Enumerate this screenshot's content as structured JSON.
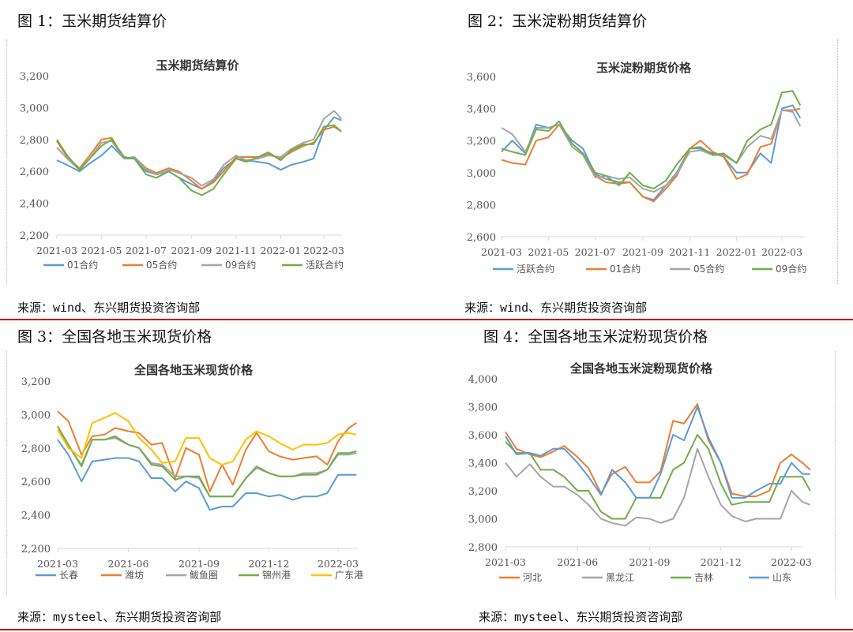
{
  "captions": [
    "图 1：玉米期货结算价",
    "图 2：玉米淀粉期货结算价",
    "图 3：全国各地玉米现货价格",
    "图 4：全国各地玉米淀粉现货价格"
  ],
  "sources": [
    "来源：wind、东兴期货投资咨询部",
    "来源：wind、东兴期货投资咨询部",
    "来源：mysteel、东兴期货投资咨询部",
    "来源：mysteel、东兴期货投资咨询部"
  ],
  "colors": {
    "blue": "#5b9bd5",
    "orange": "#ed7d31",
    "gray": "#a5a5a5",
    "green": "#70ad47",
    "yellow": "#ffc000",
    "divider": "#c00000"
  },
  "chart_data": [
    {
      "type": "line",
      "title": "玉米期货结算价",
      "ylim": [
        2200,
        3200
      ],
      "yticks": [
        "2,200",
        "2,400",
        "2,600",
        "2,800",
        "3,000",
        "3,200"
      ],
      "xticks": [
        "2021-03",
        "2021-05",
        "2021-07",
        "2021-09",
        "2021-11",
        "2022-01",
        "2022-03"
      ],
      "legend": "bottom",
      "grid": false,
      "x": [
        "2021-03-01",
        "2021-03-15",
        "2021-04-01",
        "2021-04-15",
        "2021-05-01",
        "2021-05-15",
        "2021-06-01",
        "2021-06-15",
        "2021-07-01",
        "2021-07-15",
        "2021-08-01",
        "2021-08-15",
        "2021-09-01",
        "2021-09-15",
        "2021-10-01",
        "2021-10-15",
        "2021-11-01",
        "2021-11-15",
        "2021-12-01",
        "2021-12-15",
        "2022-01-01",
        "2022-01-15",
        "2022-02-01",
        "2022-02-15",
        "2022-03-01",
        "2022-03-15",
        "2022-03-25"
      ],
      "series": [
        {
          "name": "01合约",
          "color": "#5b9bd5",
          "values": [
            2670,
            2640,
            2600,
            2650,
            2700,
            2760,
            2680,
            2680,
            2600,
            2580,
            2600,
            2560,
            2520,
            2490,
            2540,
            2620,
            2680,
            2670,
            2660,
            2650,
            2610,
            2640,
            2660,
            2680,
            2860,
            2940,
            2920
          ]
        },
        {
          "name": "05合约",
          "color": "#ed7d31",
          "values": [
            2790,
            2690,
            2620,
            2700,
            2800,
            2810,
            2680,
            2690,
            2620,
            2590,
            2620,
            2600,
            2540,
            2490,
            2530,
            2600,
            2690,
            2690,
            2690,
            2710,
            2680,
            2720,
            2760,
            2780,
            2860,
            2880,
            2850
          ]
        },
        {
          "name": "09合约",
          "color": "#a5a5a5",
          "values": [
            2750,
            2680,
            2610,
            2680,
            2780,
            2790,
            2680,
            2690,
            2610,
            2580,
            2610,
            2590,
            2560,
            2510,
            2550,
            2640,
            2700,
            2670,
            2680,
            2700,
            2690,
            2740,
            2780,
            2800,
            2930,
            2980,
            2930
          ]
        },
        {
          "name": "活跃合约",
          "color": "#70ad47",
          "values": [
            2800,
            2700,
            2610,
            2680,
            2760,
            2800,
            2690,
            2680,
            2580,
            2560,
            2600,
            2560,
            2480,
            2450,
            2490,
            2580,
            2680,
            2660,
            2690,
            2720,
            2670,
            2730,
            2770,
            2770,
            2880,
            2890,
            2850
          ]
        }
      ]
    },
    {
      "type": "line",
      "title": "玉米淀粉期货价格",
      "ylim": [
        2600,
        3600
      ],
      "yticks": [
        "2,600",
        "2,800",
        "3,000",
        "3,200",
        "3,400",
        "3,600"
      ],
      "xticks": [
        "2021-03",
        "2021-05",
        "2021-07",
        "2021-09",
        "2021-11",
        "2022-01",
        "2022-03"
      ],
      "legend": "bottom",
      "grid": false,
      "x": [
        "2021-03-01",
        "2021-03-15",
        "2021-04-01",
        "2021-04-15",
        "2021-05-01",
        "2021-05-15",
        "2021-06-01",
        "2021-06-15",
        "2021-07-01",
        "2021-07-15",
        "2021-08-01",
        "2021-08-15",
        "2021-09-01",
        "2021-09-15",
        "2021-10-01",
        "2021-10-15",
        "2021-11-01",
        "2021-11-15",
        "2021-12-01",
        "2021-12-15",
        "2022-01-01",
        "2022-01-15",
        "2022-02-01",
        "2022-02-15",
        "2022-03-01",
        "2022-03-15",
        "2022-03-25"
      ],
      "series": [
        {
          "name": "活跃合约",
          "color": "#5b9bd5",
          "values": [
            3130,
            3200,
            3120,
            3300,
            3280,
            3300,
            3200,
            3150,
            2990,
            2960,
            2940,
            2940,
            2850,
            2830,
            2920,
            3000,
            3150,
            3150,
            3120,
            3100,
            3000,
            3000,
            3120,
            3060,
            3400,
            3420,
            3340
          ]
        },
        {
          "name": "01合约",
          "color": "#ed7d31",
          "values": [
            3080,
            3060,
            3050,
            3200,
            3220,
            3300,
            3180,
            3120,
            2980,
            2940,
            2930,
            2940,
            2850,
            2820,
            2900,
            2980,
            3150,
            3200,
            3130,
            3100,
            2960,
            2990,
            3160,
            3180,
            3390,
            3390,
            3400
          ]
        },
        {
          "name": "05合约",
          "color": "#a5a5a5",
          "values": [
            3280,
            3240,
            3130,
            3280,
            3280,
            3300,
            3160,
            3110,
            2970,
            2980,
            2960,
            2970,
            2900,
            2880,
            2920,
            2990,
            3130,
            3140,
            3110,
            3110,
            3060,
            3160,
            3230,
            3210,
            3390,
            3380,
            3290
          ]
        },
        {
          "name": "09合约",
          "color": "#70ad47",
          "values": [
            3150,
            3130,
            3110,
            3270,
            3260,
            3320,
            3180,
            3120,
            3000,
            2980,
            2920,
            3000,
            2920,
            2900,
            2950,
            3050,
            3150,
            3160,
            3110,
            3120,
            3060,
            3200,
            3270,
            3300,
            3500,
            3510,
            3420
          ]
        }
      ]
    },
    {
      "type": "line",
      "title": "全国各地玉米现货价格",
      "ylim": [
        2200,
        3200
      ],
      "yticks": [
        "2,200",
        "2,400",
        "2,600",
        "2,800",
        "3,000",
        "3,200"
      ],
      "xticks": [
        "2021-03",
        "2021-06",
        "2021-09",
        "2021-12",
        "2022-03"
      ],
      "legend": "bottom",
      "grid": false,
      "x": [
        "2021-03-01",
        "2021-03-15",
        "2021-04-01",
        "2021-04-15",
        "2021-05-01",
        "2021-05-15",
        "2021-06-01",
        "2021-06-15",
        "2021-07-01",
        "2021-07-15",
        "2021-08-01",
        "2021-08-15",
        "2021-09-01",
        "2021-09-15",
        "2021-10-01",
        "2021-10-15",
        "2021-11-01",
        "2021-11-15",
        "2021-12-01",
        "2021-12-15",
        "2022-01-01",
        "2022-01-15",
        "2022-02-01",
        "2022-02-15",
        "2022-03-01",
        "2022-03-15",
        "2022-03-25"
      ],
      "series": [
        {
          "name": "长春",
          "color": "#5b9bd5",
          "values": [
            2850,
            2760,
            2600,
            2720,
            2730,
            2740,
            2740,
            2720,
            2620,
            2620,
            2540,
            2600,
            2560,
            2430,
            2450,
            2450,
            2530,
            2530,
            2510,
            2520,
            2490,
            2510,
            2510,
            2530,
            2640,
            2640,
            2640
          ]
        },
        {
          "name": "潍坊",
          "color": "#ed7d31",
          "values": [
            3020,
            2960,
            2760,
            2870,
            2880,
            2920,
            2900,
            2890,
            2820,
            2830,
            2620,
            2800,
            2760,
            2540,
            2700,
            2580,
            2790,
            2890,
            2780,
            2750,
            2730,
            2740,
            2750,
            2700,
            2840,
            2920,
            2950
          ]
        },
        {
          "name": "鲅鱼圈",
          "color": "#a5a5a5",
          "values": [
            2930,
            2810,
            2700,
            2850,
            2850,
            2860,
            2820,
            2800,
            2710,
            2700,
            2630,
            2630,
            2620,
            2510,
            2510,
            2510,
            2620,
            2680,
            2650,
            2630,
            2630,
            2650,
            2650,
            2670,
            2760,
            2760,
            2770
          ]
        },
        {
          "name": "锦州港",
          "color": "#70ad47",
          "values": [
            2930,
            2820,
            2690,
            2850,
            2850,
            2870,
            2820,
            2800,
            2700,
            2690,
            2610,
            2630,
            2630,
            2510,
            2510,
            2510,
            2620,
            2690,
            2650,
            2630,
            2630,
            2640,
            2640,
            2670,
            2770,
            2770,
            2780
          ]
        },
        {
          "name": "广东港",
          "color": "#ffc000",
          "values": [
            2910,
            2800,
            2740,
            2950,
            2980,
            3010,
            2960,
            2860,
            2790,
            2710,
            2720,
            2860,
            2860,
            2740,
            2700,
            2720,
            2850,
            2900,
            2870,
            2830,
            2790,
            2820,
            2820,
            2830,
            2880,
            2890,
            2880
          ]
        }
      ]
    },
    {
      "type": "line",
      "title": "全国各地玉米淀粉现货价格",
      "ylim": [
        2800,
        4000
      ],
      "yticks": [
        "2,800",
        "3,000",
        "3,200",
        "3,400",
        "3,600",
        "3,800",
        "4,000"
      ],
      "xticks": [
        "2021-03",
        "2021-06",
        "2021-09",
        "2021-12",
        "2022-03"
      ],
      "legend": "bottom",
      "grid": false,
      "x": [
        "2021-03-01",
        "2021-03-15",
        "2021-04-01",
        "2021-04-15",
        "2021-05-01",
        "2021-05-15",
        "2021-06-01",
        "2021-06-15",
        "2021-07-01",
        "2021-07-15",
        "2021-08-01",
        "2021-08-15",
        "2021-09-01",
        "2021-09-15",
        "2021-10-01",
        "2021-10-15",
        "2021-11-01",
        "2021-11-15",
        "2021-12-01",
        "2021-12-15",
        "2022-01-01",
        "2022-01-15",
        "2022-02-01",
        "2022-02-15",
        "2022-03-01",
        "2022-03-15",
        "2022-03-25"
      ],
      "series": [
        {
          "name": "河北",
          "color": "#ed7d31",
          "values": [
            3620,
            3500,
            3460,
            3440,
            3480,
            3520,
            3440,
            3360,
            3180,
            3320,
            3370,
            3260,
            3260,
            3340,
            3700,
            3680,
            3820,
            3560,
            3400,
            3180,
            3160,
            3160,
            3200,
            3400,
            3460,
            3400,
            3350
          ]
        },
        {
          "name": "黑龙江",
          "color": "#a5a5a5",
          "values": [
            3400,
            3300,
            3390,
            3300,
            3230,
            3230,
            3170,
            3100,
            3000,
            2970,
            2950,
            3010,
            3000,
            2970,
            3000,
            3150,
            3500,
            3300,
            3100,
            3020,
            2980,
            3000,
            3000,
            3000,
            3200,
            3120,
            3100
          ]
        },
        {
          "name": "吉林",
          "color": "#70ad47",
          "values": [
            3550,
            3470,
            3470,
            3350,
            3350,
            3300,
            3200,
            3200,
            3050,
            3000,
            3000,
            3150,
            3150,
            3150,
            3350,
            3400,
            3600,
            3500,
            3250,
            3100,
            3120,
            3120,
            3120,
            3300,
            3300,
            3300,
            3200
          ]
        },
        {
          "name": "山东",
          "color": "#5b9bd5",
          "values": [
            3590,
            3460,
            3470,
            3450,
            3500,
            3500,
            3400,
            3300,
            3170,
            3350,
            3260,
            3150,
            3150,
            3320,
            3600,
            3560,
            3800,
            3580,
            3400,
            3150,
            3150,
            3200,
            3250,
            3250,
            3400,
            3320,
            3320
          ]
        }
      ]
    }
  ]
}
